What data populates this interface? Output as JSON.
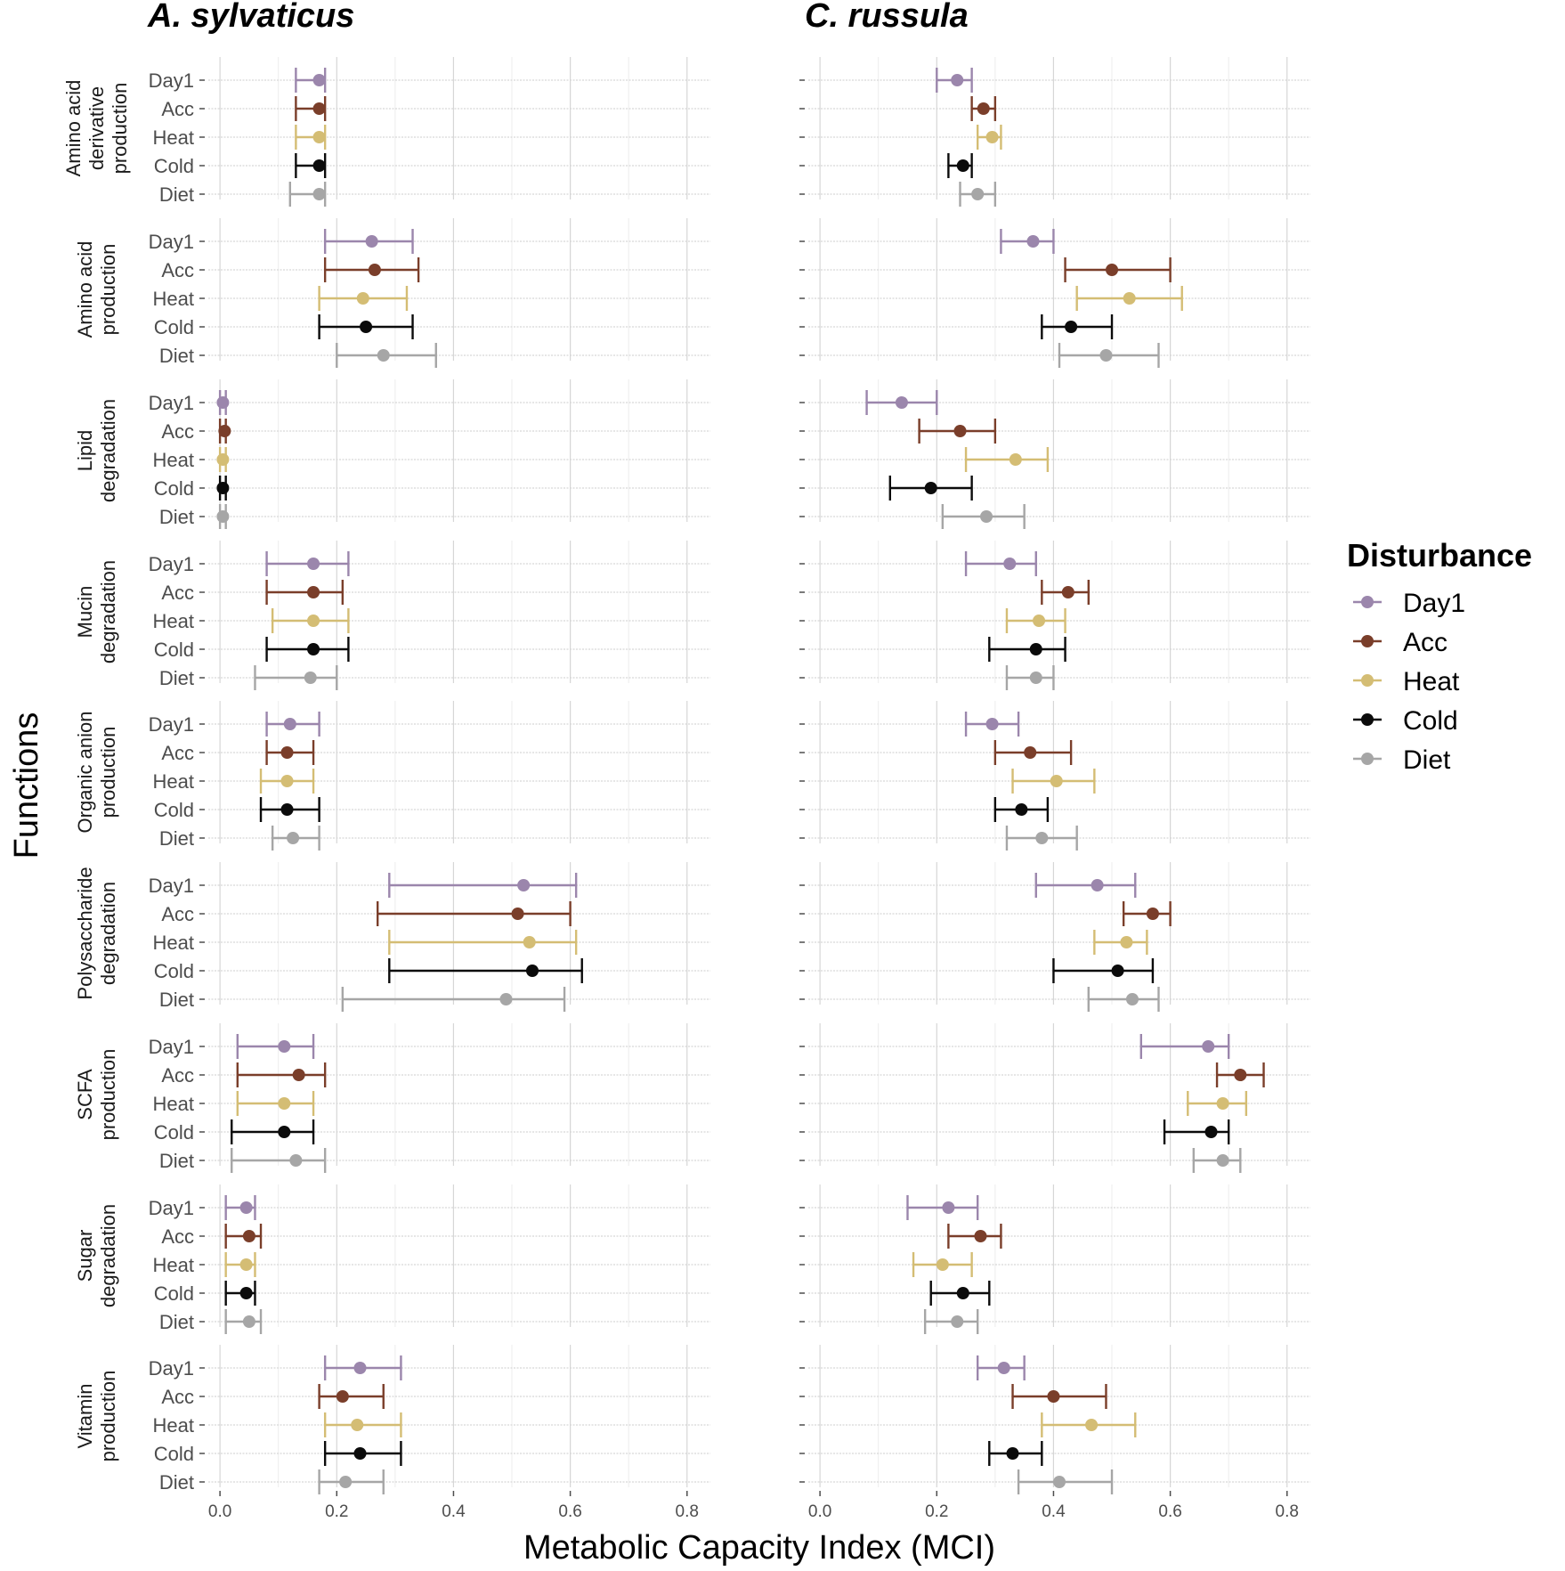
{
  "chart_data": {
    "type": "errorbar",
    "facets": [
      "A. sylvaticus",
      "C. russula"
    ],
    "rows": [
      "Amino acid\nderivative\nproduction",
      "Amino acid\nproduction",
      "Lipid\ndegradation",
      "Mucin\ndegradation",
      "Organic anion\nproduction",
      "Polysaccharide\ndegradation",
      "SCFA\nproduction",
      "Sugar\ndegradation",
      "Vitamin\nproduction"
    ],
    "categories": [
      "Day1",
      "Acc",
      "Heat",
      "Cold",
      "Diet"
    ],
    "xlabel": "Metabolic Capacity Index (MCI)",
    "ylabel": "Functions",
    "xlim": [
      -0.02,
      0.84
    ],
    "xticks": [
      0.0,
      0.2,
      0.4,
      0.6,
      0.8
    ],
    "xtick_labels": [
      "0.0",
      "0.2",
      "0.4",
      "0.6",
      "0.8"
    ],
    "legend": {
      "title": "Disturbance",
      "position": "right",
      "entries": [
        "Day1",
        "Acc",
        "Heat",
        "Cold",
        "Diet"
      ]
    },
    "colors": {
      "Day1": "#9b86ac",
      "Acc": "#7a3e2a",
      "Heat": "#d4bd74",
      "Cold": "#0b0b0b",
      "Diet": "#a6a6a6"
    },
    "grid": true,
    "data": {
      "A. sylvaticus": [
        [
          [
            0.13,
            0.17,
            0.18
          ],
          [
            0.13,
            0.17,
            0.18
          ],
          [
            0.13,
            0.17,
            0.18
          ],
          [
            0.13,
            0.17,
            0.18
          ],
          [
            0.12,
            0.17,
            0.18
          ]
        ],
        [
          [
            0.18,
            0.26,
            0.33
          ],
          [
            0.18,
            0.265,
            0.34
          ],
          [
            0.17,
            0.245,
            0.32
          ],
          [
            0.17,
            0.25,
            0.33
          ],
          [
            0.2,
            0.28,
            0.37
          ]
        ],
        [
          [
            0.0,
            0.005,
            0.01
          ],
          [
            0.0,
            0.008,
            0.01
          ],
          [
            0.0,
            0.005,
            0.01
          ],
          [
            0.0,
            0.005,
            0.01
          ],
          [
            0.0,
            0.005,
            0.01
          ]
        ],
        [
          [
            0.08,
            0.16,
            0.22
          ],
          [
            0.08,
            0.16,
            0.21
          ],
          [
            0.09,
            0.16,
            0.22
          ],
          [
            0.08,
            0.16,
            0.22
          ],
          [
            0.06,
            0.155,
            0.2
          ]
        ],
        [
          [
            0.08,
            0.12,
            0.17
          ],
          [
            0.08,
            0.115,
            0.16
          ],
          [
            0.07,
            0.115,
            0.16
          ],
          [
            0.07,
            0.115,
            0.17
          ],
          [
            0.09,
            0.125,
            0.17
          ]
        ],
        [
          [
            0.29,
            0.52,
            0.61
          ],
          [
            0.27,
            0.51,
            0.6
          ],
          [
            0.29,
            0.53,
            0.61
          ],
          [
            0.29,
            0.535,
            0.62
          ],
          [
            0.21,
            0.49,
            0.59
          ]
        ],
        [
          [
            0.03,
            0.11,
            0.16
          ],
          [
            0.03,
            0.135,
            0.18
          ],
          [
            0.03,
            0.11,
            0.16
          ],
          [
            0.02,
            0.11,
            0.16
          ],
          [
            0.02,
            0.13,
            0.18
          ]
        ],
        [
          [
            0.01,
            0.045,
            0.06
          ],
          [
            0.01,
            0.05,
            0.07
          ],
          [
            0.01,
            0.045,
            0.06
          ],
          [
            0.01,
            0.045,
            0.06
          ],
          [
            0.01,
            0.05,
            0.07
          ]
        ],
        [
          [
            0.18,
            0.24,
            0.31
          ],
          [
            0.17,
            0.21,
            0.28
          ],
          [
            0.18,
            0.235,
            0.31
          ],
          [
            0.18,
            0.24,
            0.31
          ],
          [
            0.17,
            0.215,
            0.28
          ]
        ]
      ],
      "C. russula": [
        [
          [
            0.2,
            0.235,
            0.26
          ],
          [
            0.26,
            0.28,
            0.3
          ],
          [
            0.27,
            0.295,
            0.31
          ],
          [
            0.22,
            0.245,
            0.26
          ],
          [
            0.24,
            0.27,
            0.3
          ]
        ],
        [
          [
            0.31,
            0.365,
            0.4
          ],
          [
            0.42,
            0.5,
            0.6
          ],
          [
            0.44,
            0.53,
            0.62
          ],
          [
            0.38,
            0.43,
            0.5
          ],
          [
            0.41,
            0.49,
            0.58
          ]
        ],
        [
          [
            0.08,
            0.14,
            0.2
          ],
          [
            0.17,
            0.24,
            0.3
          ],
          [
            0.25,
            0.335,
            0.39
          ],
          [
            0.12,
            0.19,
            0.26
          ],
          [
            0.21,
            0.285,
            0.35
          ]
        ],
        [
          [
            0.25,
            0.325,
            0.37
          ],
          [
            0.38,
            0.425,
            0.46
          ],
          [
            0.32,
            0.375,
            0.42
          ],
          [
            0.29,
            0.37,
            0.42
          ],
          [
            0.32,
            0.37,
            0.4
          ]
        ],
        [
          [
            0.25,
            0.295,
            0.34
          ],
          [
            0.3,
            0.36,
            0.43
          ],
          [
            0.33,
            0.405,
            0.47
          ],
          [
            0.3,
            0.345,
            0.39
          ],
          [
            0.32,
            0.38,
            0.44
          ]
        ],
        [
          [
            0.37,
            0.475,
            0.54
          ],
          [
            0.52,
            0.57,
            0.6
          ],
          [
            0.47,
            0.525,
            0.56
          ],
          [
            0.4,
            0.51,
            0.57
          ],
          [
            0.46,
            0.535,
            0.58
          ]
        ],
        [
          [
            0.55,
            0.665,
            0.7
          ],
          [
            0.68,
            0.72,
            0.76
          ],
          [
            0.63,
            0.69,
            0.73
          ],
          [
            0.59,
            0.67,
            0.7
          ],
          [
            0.64,
            0.69,
            0.72
          ]
        ],
        [
          [
            0.15,
            0.22,
            0.27
          ],
          [
            0.22,
            0.275,
            0.31
          ],
          [
            0.16,
            0.21,
            0.26
          ],
          [
            0.19,
            0.245,
            0.29
          ],
          [
            0.18,
            0.235,
            0.27
          ]
        ],
        [
          [
            0.27,
            0.315,
            0.35
          ],
          [
            0.33,
            0.4,
            0.49
          ],
          [
            0.38,
            0.465,
            0.54
          ],
          [
            0.29,
            0.33,
            0.38
          ],
          [
            0.34,
            0.41,
            0.5
          ]
        ]
      ]
    }
  }
}
